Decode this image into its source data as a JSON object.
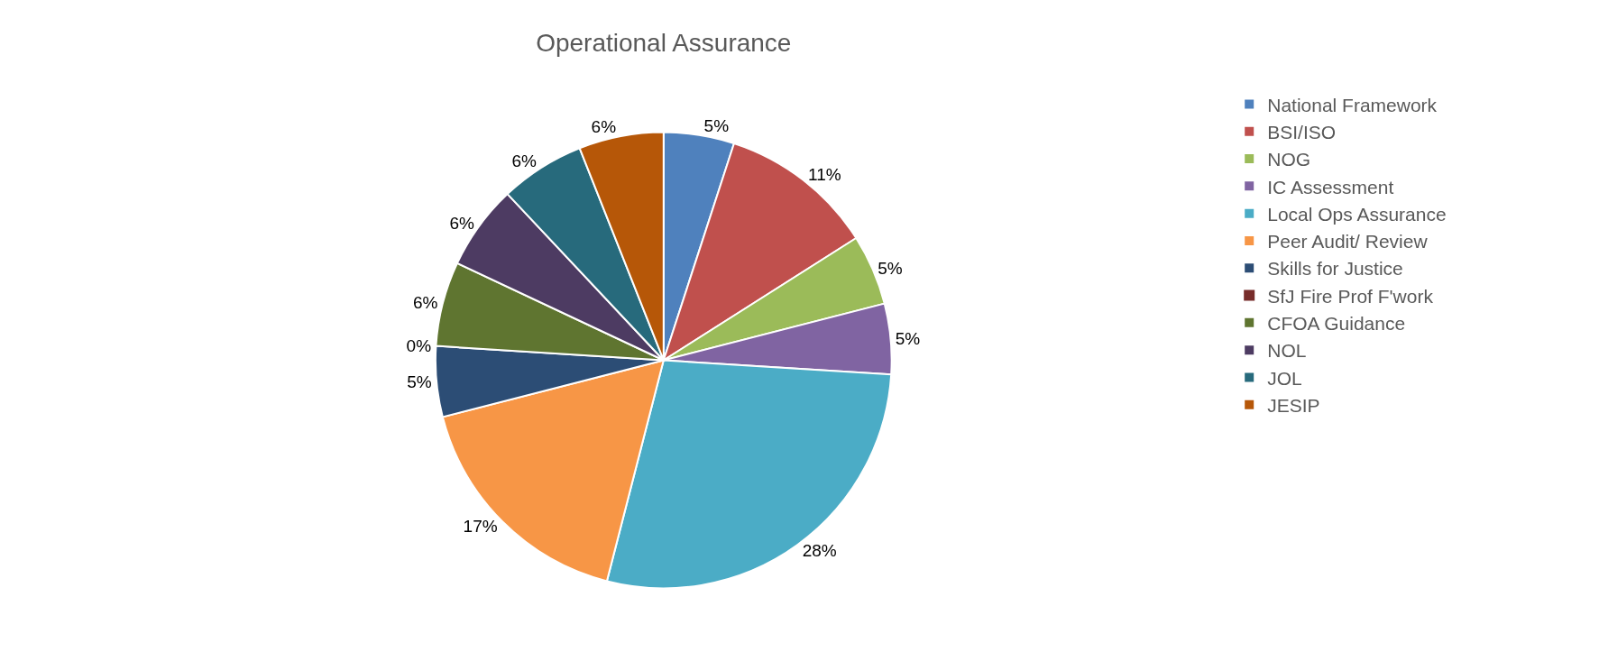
{
  "chart_data": {
    "type": "pie",
    "title": "Operational Assurance",
    "categories": [
      "National Framework",
      "BSI/ISO",
      "NOG",
      "IC Assessment",
      "Local Ops Assurance",
      "Peer Audit/ Review",
      "Skills for Justice",
      "SfJ Fire Prof F'work",
      "CFOA Guidance",
      "NOL",
      "JOL",
      "JESIP"
    ],
    "values": [
      5,
      11,
      5,
      5,
      28,
      17,
      5,
      0,
      6,
      6,
      6,
      6
    ],
    "value_labels": [
      "5%",
      "11%",
      "5%",
      "5%",
      "28%",
      "17%",
      "5%",
      "0%",
      "6%",
      "6%",
      "6%",
      "6%"
    ],
    "colors": [
      "#4f81bd",
      "#c0504d",
      "#9bbb59",
      "#8064a2",
      "#4bacc6",
      "#f79646",
      "#2c4d75",
      "#772c2a",
      "#5f7530",
      "#4d3b62",
      "#276a7c",
      "#b65708"
    ],
    "legend": "right"
  }
}
